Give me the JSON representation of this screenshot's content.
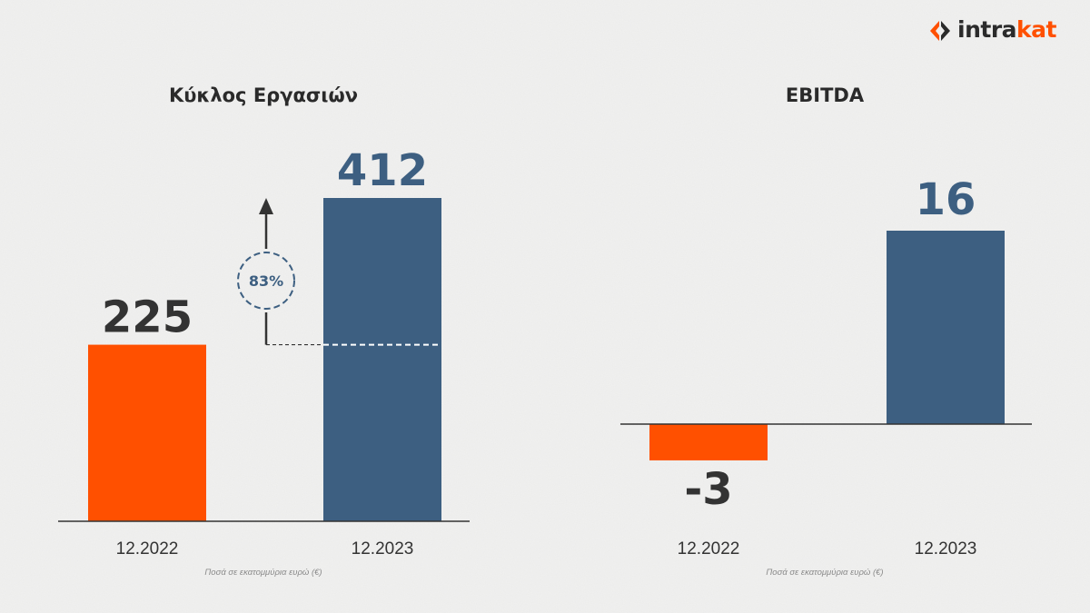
{
  "brand": {
    "logo_part1": "intra",
    "logo_part2": "kat",
    "primary_color": "#ff5000",
    "secondary_color": "#3d5f81"
  },
  "chart_data": [
    {
      "type": "bar",
      "title": "Κύκλος Εργασιών",
      "categories": [
        "12.2022",
        "12.2023"
      ],
      "values": [
        225,
        412
      ],
      "value_labels": [
        "225",
        "412"
      ],
      "colors": [
        "#ff5000",
        "#3d5f81"
      ],
      "value_label_colors": [
        "#333333",
        "#3d5f81"
      ],
      "ylim": [
        0,
        412
      ],
      "annotation": {
        "text": "83%",
        "type": "growth-arrow"
      },
      "footnote": "Ποσά σε εκατομμύρια ευρώ (€)"
    },
    {
      "type": "bar",
      "title": "EBITDA",
      "categories": [
        "12.2022",
        "12.2023"
      ],
      "values": [
        -3,
        16
      ],
      "value_labels": [
        "-3",
        "16"
      ],
      "colors": [
        "#ff5000",
        "#3d5f81"
      ],
      "value_label_colors": [
        "#333333",
        "#3d5f81"
      ],
      "ylim": [
        -3,
        16
      ],
      "footnote": "Ποσά σε εκατομμύρια ευρώ (€)"
    }
  ]
}
